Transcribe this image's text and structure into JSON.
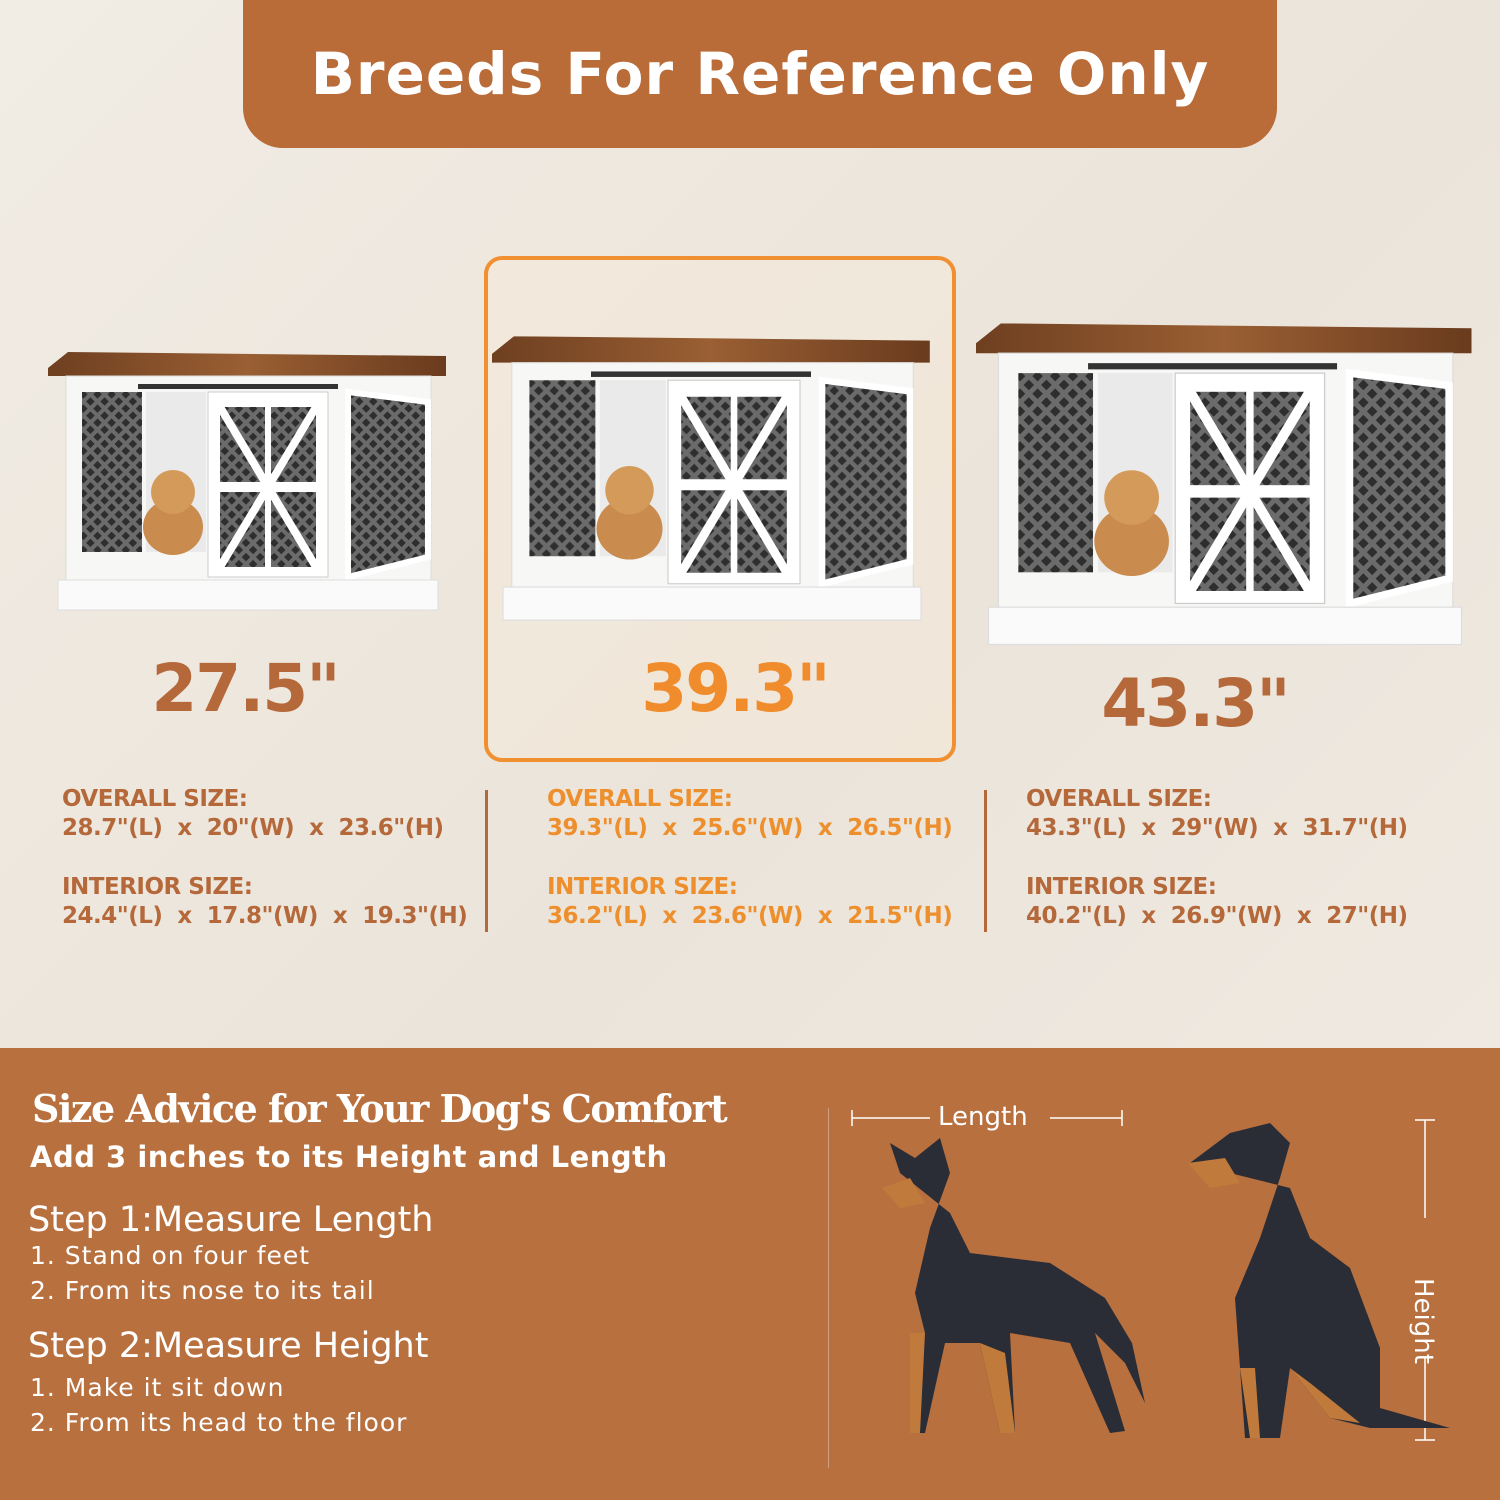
{
  "banner": {
    "title": "Breeds For Reference Only"
  },
  "colors": {
    "brand_brown": "#b96b38",
    "highlight_orange": "#f09030",
    "text_brown": "#b5693a",
    "background": "#eee8df"
  },
  "products": [
    {
      "size": "27.5\"",
      "overall_label": "OVERALL SIZE:",
      "overall": "28.7\"(L)  x  20\"(W)  x  23.6\"(H)",
      "interior_label": "INTERIOR SIZE:",
      "interior": "24.4\"(L)  x  17.8\"(W)  x  19.3\"(H)",
      "highlighted": false
    },
    {
      "size": "39.3\"",
      "overall_label": "OVERALL SIZE:",
      "overall": "39.3\"(L)  x  25.6\"(W)  x  26.5\"(H)",
      "interior_label": "INTERIOR SIZE:",
      "interior": "36.2\"(L)  x  23.6\"(W)  x  21.5\"(H)",
      "highlighted": true
    },
    {
      "size": "43.3\"",
      "overall_label": "OVERALL SIZE:",
      "overall": "43.3\"(L)  x  29\"(W)  x  31.7\"(H)",
      "interior_label": "INTERIOR SIZE:",
      "interior": "40.2\"(L)  x  26.9\"(W)  x  27\"(H)",
      "highlighted": false
    }
  ],
  "advice": {
    "title": "Size Advice for Your Dog's Comfort",
    "subtitle": "Add 3 inches to its Height and Length",
    "step1": {
      "title": "Step 1:Measure Length",
      "items": [
        "1. Stand on four feet",
        "2. From its nose to its tail"
      ]
    },
    "step2": {
      "title": "Step 2:Measure Height",
      "items": [
        "1. Make it sit down",
        "2. From its head to the floor"
      ]
    },
    "length_label": "Length",
    "height_label": "Height"
  }
}
